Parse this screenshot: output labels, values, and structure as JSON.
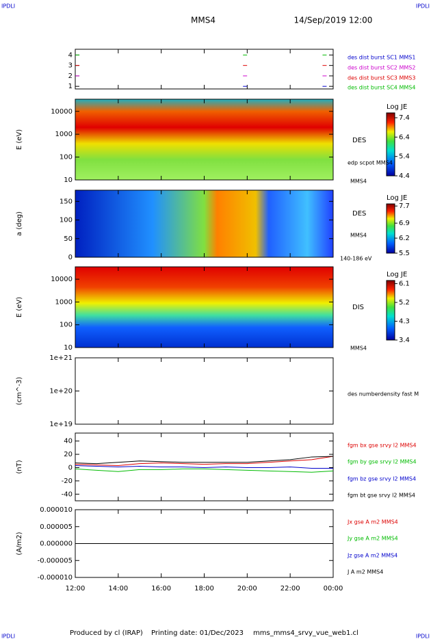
{
  "header": {
    "left": "IPDLI",
    "right": "IPDLI",
    "title": "MMS4",
    "date": "14/Sep/2019 12:00"
  },
  "footer": {
    "left": "IPDLI",
    "right": "IPDLI",
    "produced": "Produced by cl (IRAP)",
    "printing": "Printing date: 01/Dec/2023",
    "file": "mms_mms4_srvy_vue_web1.cl"
  },
  "time_axis": {
    "xlim": [
      12,
      24
    ],
    "xticks": [
      {
        "value": 12,
        "label": "12:00"
      },
      {
        "value": 14,
        "label": "14:00"
      },
      {
        "value": 16,
        "label": "16:00"
      },
      {
        "value": 18,
        "label": "18:00"
      },
      {
        "value": 20,
        "label": "20:00"
      },
      {
        "value": 22,
        "label": "22:00"
      },
      {
        "value": 24,
        "label": "00:00"
      }
    ]
  },
  "chart_data": [
    {
      "type": "event",
      "ylim": [
        0.75,
        4.55
      ],
      "yticks": [
        1,
        2,
        3,
        4
      ],
      "series": [
        {
          "name": "des dist burst SC1 MMS1",
          "color": "#0000cc",
          "level": 1,
          "x": [
            19.9,
            23.6
          ]
        },
        {
          "name": "des dist burst SC2 MMS2",
          "color": "#cc00cc",
          "level": 2,
          "x": [
            12.1,
            19.9,
            23.6
          ]
        },
        {
          "name": "des dist burst SC3 MMS3",
          "color": "#dd0000",
          "level": 3,
          "x": [
            12.1,
            19.9,
            23.6
          ]
        },
        {
          "name": "des dist burst SC4 MMS4",
          "color": "#00bb00",
          "level": 4,
          "x": [
            12.1,
            19.9,
            23.6
          ]
        }
      ]
    },
    {
      "type": "spectrogram",
      "ylabel": "E (eV)",
      "log": true,
      "ylim": [
        10,
        34000
      ],
      "yticks": [
        10,
        100,
        1000,
        10000
      ],
      "colorbar": {
        "label": "Log JE",
        "lim": [
          4.4,
          7.65
        ],
        "ticks": [
          4.4,
          5.4,
          6.4,
          7.4
        ]
      },
      "labels": [
        "DES",
        "edp scpot MMS4",
        "MMS4"
      ]
    },
    {
      "type": "spectrogram",
      "ylabel": "a (deg)",
      "log": false,
      "ylim": [
        0,
        180
      ],
      "yticks": [
        0,
        50,
        100,
        150
      ],
      "colorbar": {
        "label": "Log JE",
        "lim": [
          5.5,
          7.8
        ],
        "ticks": [
          5.5,
          6.2,
          6.9,
          7.7
        ]
      },
      "labels": [
        "DES",
        "MMS4",
        "140-186 eV"
      ]
    },
    {
      "type": "spectrogram",
      "ylabel": "E (eV)",
      "log": true,
      "ylim": [
        10,
        35000
      ],
      "yticks": [
        10,
        100,
        1000,
        10000
      ],
      "colorbar": {
        "label": "Log JE",
        "lim": [
          3.4,
          6.25
        ],
        "ticks": [
          3.4,
          4.3,
          5.2,
          6.1
        ]
      },
      "labels": [
        "DIS",
        "MMS4"
      ]
    },
    {
      "type": "blank",
      "ylabel": "(cm^-3)",
      "log": true,
      "ylim": [
        1e+19,
        1e+21
      ],
      "yticks": [
        {
          "value": 1e+19,
          "label": "1e+19"
        },
        {
          "value": 1e+20,
          "label": "1e+20"
        },
        {
          "value": 1e+21,
          "label": "1e+21"
        }
      ],
      "labels": [
        "des numberdensity fast M"
      ]
    },
    {
      "type": "line",
      "ylabel": "(nT)",
      "ylim": [
        -50,
        52
      ],
      "yticks": [
        -40,
        -20,
        0,
        20,
        40
      ],
      "x": [
        12,
        13,
        14,
        15,
        16,
        17,
        18,
        19,
        20,
        21,
        22,
        23,
        24
      ],
      "series": [
        {
          "name": "fgm bx gse srvy l2 MMS4",
          "color": "#dd0000",
          "values": [
            5,
            4,
            3,
            6,
            7,
            6,
            5,
            6,
            6,
            8,
            10,
            12,
            17
          ]
        },
        {
          "name": "fgm by gse srvy l2 MMS4",
          "color": "#00bb00",
          "values": [
            -2,
            -4,
            -6,
            -3,
            -3,
            -2,
            -2,
            -3,
            -4,
            -5,
            -6,
            -7,
            -5
          ]
        },
        {
          "name": "fgm bz gse srvy l2 MMS4",
          "color": "#0000cc",
          "values": [
            3,
            2,
            1,
            2,
            1,
            1,
            0,
            1,
            0,
            0,
            1,
            -1,
            -1
          ]
        },
        {
          "name": "fgm bt gse srvy l2 MMS4",
          "color": "#000000",
          "values": [
            7,
            6,
            8,
            10,
            9,
            8,
            8,
            8,
            8,
            10,
            12,
            16,
            17
          ]
        }
      ]
    },
    {
      "type": "line",
      "ylabel": "(A/m2)",
      "ylim": [
        -1e-05,
        1e-05
      ],
      "yticks": [
        {
          "value": -1e-05,
          "label": "-0.000010"
        },
        {
          "value": -5e-06,
          "label": "-0.000005"
        },
        {
          "value": 0,
          "label": "0.000000"
        },
        {
          "value": 5e-06,
          "label": "0.000005"
        },
        {
          "value": 1e-05,
          "label": "0.000010"
        }
      ],
      "x": [
        12,
        13,
        14,
        15,
        16,
        17,
        18,
        19,
        20,
        21,
        22,
        23,
        24
      ],
      "series": [
        {
          "name": "Jx gse A m2 MMS4",
          "color": "#dd0000",
          "values": [
            0,
            0,
            0,
            0,
            0,
            0,
            0,
            0,
            0,
            0,
            0,
            0,
            0
          ]
        },
        {
          "name": "Jy gse A m2 MMS4",
          "color": "#00bb00",
          "values": [
            0,
            0,
            0,
            0,
            0,
            0,
            0,
            0,
            0,
            0,
            0,
            0,
            0
          ]
        },
        {
          "name": "Jz gse A m2 MMS4",
          "color": "#0000cc",
          "values": [
            0,
            0,
            0,
            0,
            0,
            0,
            0,
            0,
            0,
            0,
            0,
            0,
            0
          ]
        },
        {
          "name": "J A m2 MMS4",
          "color": "#000000",
          "values": [
            0,
            0,
            0,
            0,
            0,
            0,
            0,
            0,
            0,
            0,
            0,
            0,
            0
          ]
        }
      ]
    }
  ]
}
